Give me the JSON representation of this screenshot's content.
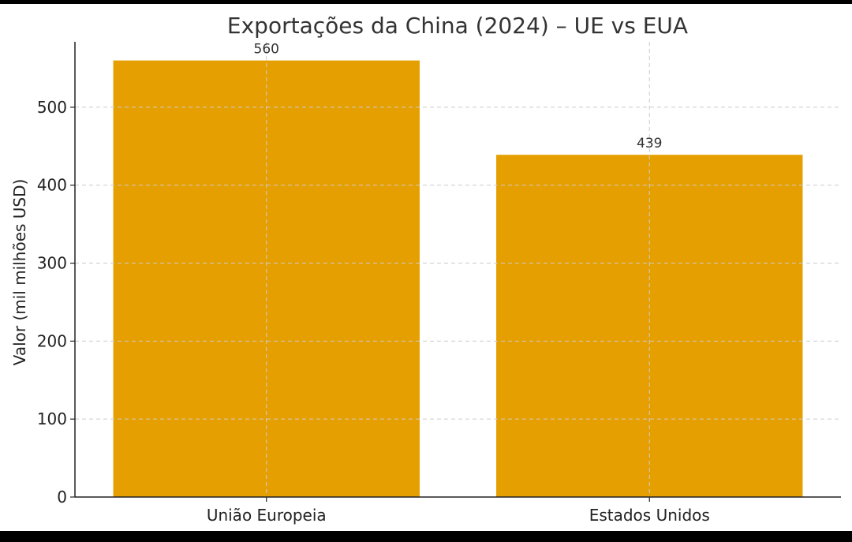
{
  "chart_data": {
    "type": "bar",
    "title": "Exportações da China (2024) – UE vs EUA",
    "xlabel": "",
    "ylabel": "Valor (mil milhões USD)",
    "categories": [
      "União Europeia",
      "Estados Unidos"
    ],
    "values": [
      560,
      439
    ],
    "data_labels": [
      "560",
      "439"
    ],
    "ylim": [
      0,
      590
    ],
    "yticks": [
      0,
      100,
      200,
      300,
      400,
      500
    ],
    "grid": true,
    "legend": "none",
    "bar_color": "#E69F00"
  }
}
